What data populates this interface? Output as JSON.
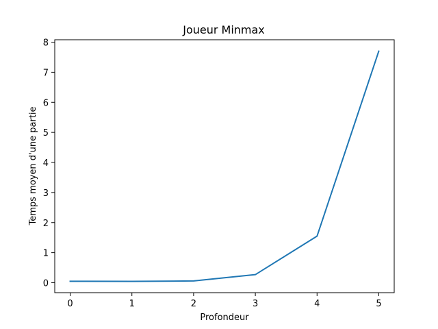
{
  "chart_data": {
    "type": "line",
    "title": "Joueur Minmax",
    "xlabel": "Profondeur",
    "ylabel": "Temps moyen d'une partie",
    "x": [
      0,
      1,
      2,
      3,
      4,
      5
    ],
    "series": [
      {
        "values": [
          0.05,
          0.045,
          0.06,
          0.27,
          1.55,
          7.7
        ],
        "color": "#1f77b4"
      }
    ],
    "xlim": [
      -0.25,
      5.25
    ],
    "ylim": [
      -0.33,
      8.08
    ],
    "xticks": [
      0,
      1,
      2,
      3,
      4,
      5
    ],
    "yticks": [
      0,
      1,
      2,
      3,
      4,
      5,
      6,
      7,
      8
    ],
    "grid": false
  }
}
